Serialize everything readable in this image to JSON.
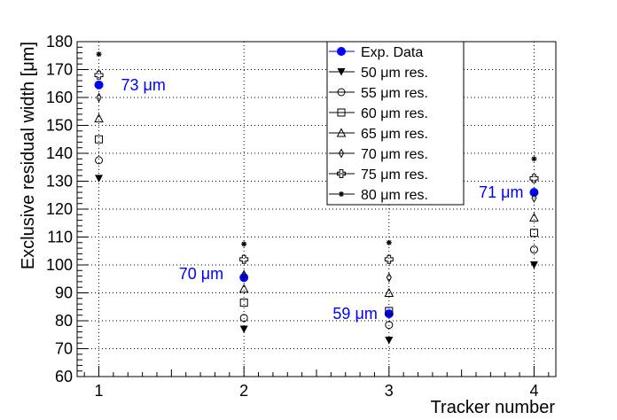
{
  "chart_data": {
    "type": "scatter",
    "title": "",
    "xlabel": "Tracker number",
    "ylabel": "Exclusive residual width [μm]",
    "xlim": [
      0.85,
      4.15
    ],
    "ylim": [
      60,
      180
    ],
    "x_ticks": [
      1,
      2,
      3,
      4
    ],
    "y_ticks": [
      60,
      70,
      80,
      90,
      100,
      110,
      120,
      130,
      140,
      150,
      160,
      170,
      180
    ],
    "grid": true,
    "legend_position": "top-center",
    "series": [
      {
        "name": "Exp. Data",
        "marker": "filled-circle",
        "color": "#0000ff",
        "x": [
          1,
          2,
          3,
          4
        ],
        "y": [
          164.5,
          95.5,
          82.5,
          126
        ]
      },
      {
        "name": "50 μm res.",
        "marker": "filled-triangle-down",
        "color": "#000000",
        "x": [
          1,
          2,
          3,
          4
        ],
        "y": [
          131,
          77,
          73,
          100
        ]
      },
      {
        "name": "55 μm res.",
        "marker": "open-circle",
        "color": "#000000",
        "x": [
          1,
          2,
          3,
          4
        ],
        "y": [
          137.5,
          81,
          78.5,
          105.5
        ]
      },
      {
        "name": "60 μm res.",
        "marker": "open-square",
        "color": "#000000",
        "x": [
          1,
          2,
          3,
          4
        ],
        "y": [
          145,
          86.5,
          83.5,
          111.5
        ]
      },
      {
        "name": "65 μm res.",
        "marker": "open-triangle-up",
        "color": "#000000",
        "x": [
          1,
          2,
          3,
          4
        ],
        "y": [
          152.5,
          91.5,
          90,
          117
        ]
      },
      {
        "name": "70 μm res.",
        "marker": "open-diamond",
        "color": "#000000",
        "x": [
          1,
          2,
          3,
          4
        ],
        "y": [
          160,
          96.5,
          95.5,
          124
        ]
      },
      {
        "name": "75 μm res.",
        "marker": "open-cross",
        "color": "#000000",
        "x": [
          1,
          2,
          3,
          4
        ],
        "y": [
          168,
          102,
          102,
          131
        ]
      },
      {
        "name": "80 μm res.",
        "marker": "star",
        "color": "#000000",
        "x": [
          1,
          2,
          3,
          4
        ],
        "y": [
          175.5,
          107.5,
          108,
          138
        ]
      }
    ],
    "annotations": [
      {
        "text": "73 μm",
        "x": 1,
        "y": 164.5
      },
      {
        "text": "70 μm",
        "x": 2,
        "y": 95.5
      },
      {
        "text": "59 μm",
        "x": 3,
        "y": 82.5
      },
      {
        "text": "71 μm",
        "x": 4,
        "y": 126
      }
    ]
  }
}
